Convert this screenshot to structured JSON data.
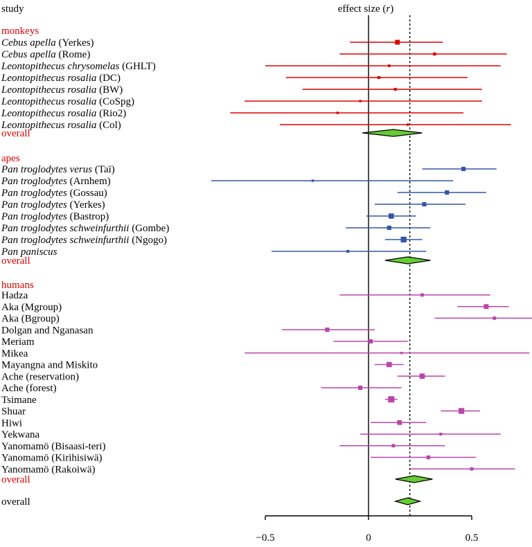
{
  "chart_data": {
    "type": "forest",
    "header_left": "study",
    "header_right_prefix": "effect size (",
    "header_right_var": "r",
    "header_right_suffix": ")",
    "xlim": [
      -0.5,
      0.5
    ],
    "xticks": [
      -0.5,
      0,
      0.5
    ],
    "xtick_labels": [
      "−0.5",
      "0",
      "0.5"
    ],
    "reference_line": 0,
    "dotted_line": 0.2,
    "colors": {
      "monkeys": "#dd0000",
      "apes": "#3355aa",
      "humans": "#bb44aa",
      "overall_fill": "#66cc33",
      "label_red": "#dd0000",
      "text": "#000000"
    },
    "groups": [
      {
        "name": "monkeys",
        "color_key": "monkeys",
        "studies": [
          {
            "label": "Cebus apella",
            "italic": true,
            "suffix": " (Yerkes)",
            "est": 0.14,
            "lo": -0.09,
            "hi": 0.36,
            "w": 0.7
          },
          {
            "label": "Cebus apella",
            "italic": true,
            "suffix": " (Rome)",
            "est": 0.32,
            "lo": -0.14,
            "hi": 0.67,
            "w": 0.35
          },
          {
            "label": "Leontopithecus chrysomelas",
            "italic": true,
            "suffix": " (GHLT)",
            "est": 0.1,
            "lo": -0.5,
            "hi": 0.64,
            "w": 0.25
          },
          {
            "label": "Leontopithecus rosalia",
            "italic": true,
            "suffix": " (DC)",
            "est": 0.05,
            "lo": -0.4,
            "hi": 0.48,
            "w": 0.3
          },
          {
            "label": "Leontopithecus rosalia",
            "italic": true,
            "suffix": " (BW)",
            "est": 0.13,
            "lo": -0.32,
            "hi": 0.55,
            "w": 0.3
          },
          {
            "label": "Leontopithecus rosalia",
            "italic": true,
            "suffix": " (CoSpg)",
            "est": -0.04,
            "lo": -0.6,
            "hi": 0.55,
            "w": 0.2
          },
          {
            "label": "Leontopithecus rosalia",
            "italic": true,
            "suffix": " (Rio2)",
            "est": -0.15,
            "lo": -0.67,
            "hi": 0.46,
            "w": 0.2
          },
          {
            "label": "Leontopithecus rosalia",
            "italic": true,
            "suffix": " (Col)",
            "est": 0.19,
            "lo": -0.43,
            "hi": 0.69,
            "w": 0.2
          }
        ],
        "overall": {
          "label": "overall",
          "est": 0.12,
          "lo": -0.03,
          "hi": 0.26
        }
      },
      {
        "name": "apes",
        "color_key": "apes",
        "studies": [
          {
            "label": "Pan troglodytes verus",
            "italic": true,
            "suffix": " (Taï)",
            "est": 0.46,
            "lo": 0.26,
            "hi": 0.62,
            "w": 0.6
          },
          {
            "label": "Pan troglodytes",
            "italic": true,
            "suffix": " (Arnhem)",
            "est": -0.27,
            "lo": -0.77,
            "hi": 0.41,
            "w": 0.2
          },
          {
            "label": "Pan troglodytes",
            "italic": true,
            "suffix": " (Gossau)",
            "est": 0.38,
            "lo": 0.14,
            "hi": 0.57,
            "w": 0.6
          },
          {
            "label": "Pan troglodytes",
            "italic": true,
            "suffix": " (Yerkes)",
            "est": 0.27,
            "lo": 0.03,
            "hi": 0.47,
            "w": 0.6
          },
          {
            "label": "Pan troglodytes",
            "italic": true,
            "suffix": " (Bastrop)",
            "est": 0.11,
            "lo": -0.01,
            "hi": 0.23,
            "w": 0.8
          },
          {
            "label": "Pan troglodytes schweinfurthii",
            "italic": true,
            "suffix": " (Gombe)",
            "est": 0.1,
            "lo": -0.11,
            "hi": 0.3,
            "w": 0.6
          },
          {
            "label": "Pan troglodytes schweinfurthii",
            "italic": true,
            "suffix": " (Ngogo)",
            "est": 0.17,
            "lo": 0.08,
            "hi": 0.26,
            "w": 0.9
          },
          {
            "label": "Pan paniscus",
            "italic": true,
            "suffix": "",
            "est": -0.1,
            "lo": -0.47,
            "hi": 0.28,
            "w": 0.3
          }
        ],
        "overall": {
          "label": "overall",
          "est": 0.19,
          "lo": 0.08,
          "hi": 0.3
        }
      },
      {
        "name": "humans",
        "color_key": "humans",
        "studies": [
          {
            "label": "Hadza",
            "italic": false,
            "suffix": "",
            "est": 0.26,
            "lo": -0.14,
            "hi": 0.59,
            "w": 0.4
          },
          {
            "label": "Aka (Mgroup)",
            "italic": false,
            "suffix": "",
            "est": 0.57,
            "lo": 0.43,
            "hi": 0.68,
            "w": 0.7
          },
          {
            "label": "Aka (Bgroup)",
            "italic": false,
            "suffix": "",
            "est": 0.61,
            "lo": 0.32,
            "hi": 0.8,
            "w": 0.4
          },
          {
            "label": "Dolgan and Nganasan",
            "italic": false,
            "suffix": "",
            "est": -0.2,
            "lo": -0.42,
            "hi": 0.03,
            "w": 0.6
          },
          {
            "label": "Meriam",
            "italic": false,
            "suffix": "",
            "est": 0.01,
            "lo": -0.17,
            "hi": 0.19,
            "w": 0.6
          },
          {
            "label": "Mikea",
            "italic": false,
            "suffix": "",
            "est": 0.16,
            "lo": -0.6,
            "hi": 0.78,
            "w": 0.2
          },
          {
            "label": "Mayangna and Miskito",
            "italic": false,
            "suffix": "",
            "est": 0.1,
            "lo": 0.03,
            "hi": 0.17,
            "w": 0.8
          },
          {
            "label": "Ache (reservation)",
            "italic": false,
            "suffix": "",
            "est": 0.26,
            "lo": 0.14,
            "hi": 0.37,
            "w": 0.8
          },
          {
            "label": "Ache (forest)",
            "italic": false,
            "suffix": "",
            "est": -0.04,
            "lo": -0.23,
            "hi": 0.16,
            "w": 0.6
          },
          {
            "label": "Tsimane",
            "italic": false,
            "suffix": "",
            "est": 0.11,
            "lo": 0.08,
            "hi": 0.14,
            "w": 1.0
          },
          {
            "label": "Shuar",
            "italic": false,
            "suffix": "",
            "est": 0.45,
            "lo": 0.35,
            "hi": 0.54,
            "w": 0.9
          },
          {
            "label": "Hiwi",
            "italic": false,
            "suffix": "",
            "est": 0.15,
            "lo": 0.01,
            "hi": 0.28,
            "w": 0.7
          },
          {
            "label": "Yekwana",
            "italic": false,
            "suffix": "",
            "est": 0.35,
            "lo": -0.04,
            "hi": 0.64,
            "w": 0.3
          },
          {
            "label": "Yanomamö (Bisaasi-teri)",
            "italic": false,
            "suffix": "",
            "est": 0.12,
            "lo": -0.14,
            "hi": 0.37,
            "w": 0.4
          },
          {
            "label": "Yanomamö (Kirihisiwä)",
            "italic": false,
            "suffix": "",
            "est": 0.29,
            "lo": 0.01,
            "hi": 0.52,
            "w": 0.5
          },
          {
            "label": "Yanomamö (Rakoiwä)",
            "italic": false,
            "suffix": "",
            "est": 0.5,
            "lo": 0.2,
            "hi": 0.71,
            "w": 0.4
          }
        ],
        "overall": {
          "label": "overall",
          "est": 0.22,
          "lo": 0.13,
          "hi": 0.31
        }
      }
    ],
    "grand_overall": {
      "label": "overall",
      "est": 0.19,
      "lo": 0.13,
      "hi": 0.25
    }
  }
}
